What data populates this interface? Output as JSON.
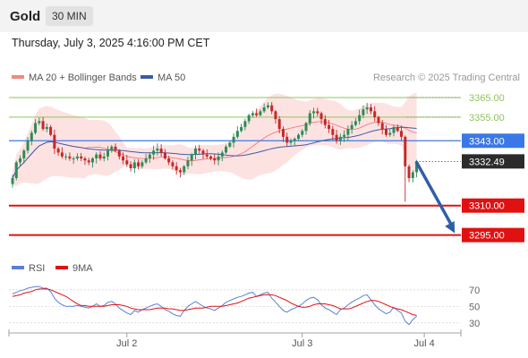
{
  "header": {
    "symbol": "Gold",
    "timeframe": "30 MIN",
    "datetime": "Thursday, July 3, 2025 4:16:00 PM CET"
  },
  "colors": {
    "up_candle": "#2e8b57",
    "down_candle": "#c62828",
    "ma20": "#ef5350",
    "bollinger_fill": "#fde2e2",
    "ma50": "#3b5ba8",
    "support": "#e11111",
    "resistance": "#8fc65a",
    "pivot": "#3b78e7",
    "arrow": "#2f5ea8",
    "rsi": "#5b7fd6",
    "rsi_ma": "#e11111"
  },
  "chart_data": [
    {
      "type": "candlestick",
      "legend": [
        {
          "name": "MA 20 + Bollinger Bands",
          "color": "#ef8a80"
        },
        {
          "name": "MA 50",
          "color": "#3b5ba8"
        }
      ],
      "legend_placement": "top-left",
      "credit": "Research © 2025 Trading Central",
      "ylim": [
        3288,
        3370
      ],
      "x_ticks": [
        {
          "label": "Jul 2",
          "index": 30
        },
        {
          "label": "Jul 3",
          "index": 76
        },
        {
          "label": "Jul 4",
          "index": 108
        }
      ],
      "levels": [
        {
          "value": 3365.0,
          "label": "3365.00",
          "kind": "resistance"
        },
        {
          "value": 3355.0,
          "label": "3355.00",
          "kind": "resistance"
        },
        {
          "value": 3343.0,
          "label": "3343.00",
          "kind": "pivot"
        },
        {
          "value": 3310.0,
          "label": "3310.00",
          "kind": "support"
        },
        {
          "value": 3295.0,
          "label": "3295.00",
          "kind": "support"
        }
      ],
      "last_price": {
        "value": 3332.49,
        "label": "3332.49"
      },
      "forecast_arrow": {
        "from_index": 106,
        "from_value": 3332,
        "to_index": 116,
        "to_value": 3296
      },
      "closes": [
        3324,
        3332,
        3334,
        3338,
        3343,
        3347,
        3352,
        3353,
        3349,
        3350,
        3346,
        3339,
        3337,
        3335,
        3335,
        3334,
        3334,
        3335,
        3334,
        3333,
        3332,
        3334,
        3336,
        3334,
        3335,
        3338,
        3340,
        3338,
        3335,
        3333,
        3331,
        3329,
        3332,
        3330,
        3332,
        3334,
        3336,
        3338,
        3339,
        3337,
        3334,
        3332,
        3330,
        3328,
        3327,
        3330,
        3333,
        3336,
        3339,
        3338,
        3336,
        3335,
        3334,
        3333,
        3335,
        3337,
        3340,
        3342,
        3345,
        3348,
        3350,
        3353,
        3356,
        3357,
        3356,
        3358,
        3360,
        3361,
        3358,
        3354,
        3349,
        3345,
        3342,
        3343,
        3344,
        3346,
        3348,
        3352,
        3357,
        3358,
        3357,
        3354,
        3351,
        3349,
        3346,
        3343,
        3345,
        3346,
        3349,
        3351,
        3353,
        3356,
        3359,
        3360,
        3358,
        3355,
        3352,
        3349,
        3346,
        3347,
        3350,
        3348,
        3345,
        3330,
        3324,
        3327,
        3332
      ]
    },
    {
      "type": "line",
      "legend": [
        {
          "name": "RSI",
          "color": "#5b7fd6"
        },
        {
          "name": "9MA",
          "color": "#e11111"
        }
      ],
      "ylim": [
        20,
        85
      ],
      "y_ticks": [
        70,
        50,
        30
      ],
      "rsi": [
        65,
        67,
        69,
        70,
        72,
        73,
        74,
        74,
        72,
        72,
        68,
        60,
        55,
        52,
        50,
        50,
        50,
        51,
        50,
        49,
        48,
        50,
        53,
        50,
        51,
        55,
        56,
        53,
        48,
        45,
        42,
        40,
        45,
        43,
        46,
        48,
        50,
        52,
        53,
        50,
        46,
        44,
        41,
        39,
        38,
        45,
        50,
        53,
        56,
        53,
        50,
        48,
        47,
        45,
        48,
        51,
        55,
        57,
        59,
        61,
        62,
        64,
        66,
        67,
        62,
        64,
        66,
        67,
        60,
        55,
        50,
        45,
        43,
        46,
        48,
        50,
        53,
        57,
        60,
        61,
        58,
        52,
        48,
        46,
        43,
        40,
        46,
        48,
        52,
        55,
        58,
        60,
        63,
        64,
        58,
        52,
        47,
        44,
        41,
        43,
        49,
        45,
        42,
        32,
        28,
        34,
        38
      ],
      "ma9": [
        62,
        63,
        64,
        66,
        67,
        68,
        70,
        71,
        71,
        71,
        70,
        68,
        66,
        64,
        62,
        59,
        56,
        53,
        51,
        51,
        50,
        50,
        50,
        50,
        50,
        51,
        52,
        52,
        52,
        51,
        50,
        48,
        47,
        46,
        46,
        46,
        46,
        47,
        48,
        48,
        48,
        47,
        47,
        46,
        45,
        45,
        46,
        47,
        48,
        48,
        48,
        49,
        50,
        50,
        50,
        50,
        51,
        52,
        53,
        54,
        56,
        58,
        60,
        61,
        62,
        63,
        64,
        64,
        64,
        63,
        61,
        59,
        57,
        54,
        52,
        50,
        49,
        49,
        50,
        52,
        53,
        53,
        53,
        52,
        51,
        49,
        47,
        47,
        47,
        48,
        50,
        52,
        54,
        56,
        57,
        57,
        56,
        54,
        52,
        50,
        48,
        47,
        46,
        44,
        42,
        40,
        39
      ]
    }
  ]
}
